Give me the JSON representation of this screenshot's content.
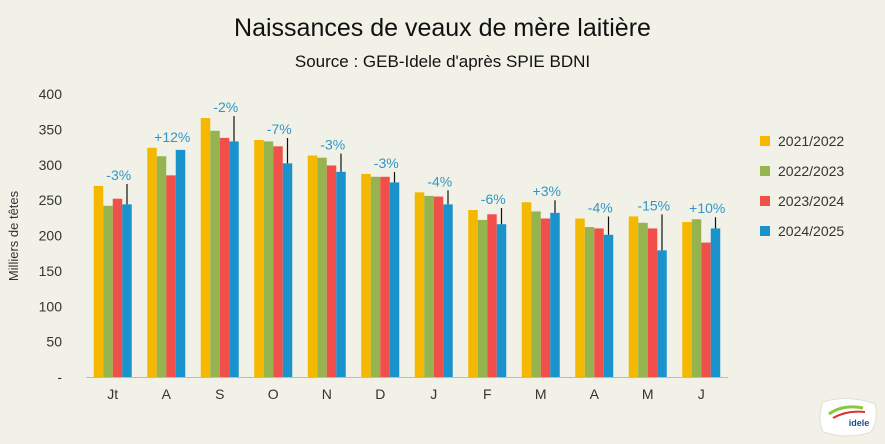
{
  "chart_data": {
    "type": "bar",
    "title": "Naissances de veaux de mère laitière",
    "subtitle": "Source : GEB-Idele d'après SPIE BDNI",
    "ylabel": "Milliers de têtes",
    "xlabel": "",
    "ylim": [
      0,
      400
    ],
    "yticks": [
      0,
      50,
      100,
      150,
      200,
      250,
      300,
      350,
      400
    ],
    "ytick_labels": [
      "-",
      "50",
      "100",
      "150",
      "200",
      "250",
      "300",
      "350",
      "400"
    ],
    "grid": false,
    "legend_position": "right",
    "categories": [
      "Jt",
      "A",
      "S",
      "O",
      "N",
      "D",
      "J",
      "F",
      "M",
      "A",
      "M",
      "J"
    ],
    "series": [
      {
        "name": "2021/2022",
        "color": "#f5b800",
        "values": [
          270,
          324,
          366,
          335,
          313,
          287,
          261,
          236,
          247,
          224,
          227,
          219
        ]
      },
      {
        "name": "2022/2023",
        "color": "#95b44f",
        "values": [
          242,
          312,
          348,
          333,
          310,
          283,
          256,
          222,
          234,
          212,
          218,
          223
        ]
      },
      {
        "name": "2023/2024",
        "color": "#f04f4a",
        "values": [
          252,
          285,
          338,
          326,
          299,
          283,
          255,
          230,
          224,
          210,
          210,
          190
        ]
      },
      {
        "name": "2024/2025",
        "color": "#1a92cc",
        "values": [
          244,
          321,
          333,
          302,
          290,
          275,
          244,
          216,
          232,
          201,
          179,
          210
        ]
      }
    ],
    "annotations": [
      "-3%",
      "+12%",
      "-2%",
      "-7%",
      "-3%",
      "-3%",
      "-4%",
      "-6%",
      "+3%",
      "-4%",
      "-15%",
      "+10%"
    ],
    "annotation_color": "#2f97c7"
  },
  "logo": {
    "text": "idele"
  }
}
